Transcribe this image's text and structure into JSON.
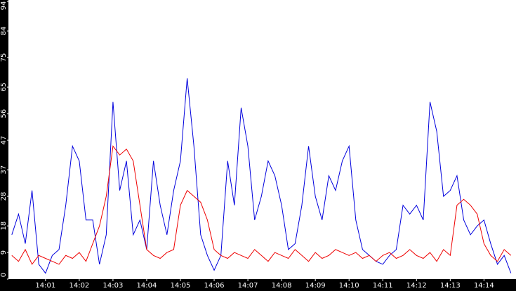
{
  "chart_data": {
    "type": "line",
    "x": [
      0,
      0.2,
      0.4,
      0.6,
      0.8,
      1,
      1.2,
      1.4,
      1.6,
      1.8,
      2,
      2.2,
      2.4,
      2.6,
      2.8,
      3,
      3.2,
      3.4,
      3.6,
      3.8,
      4,
      4.2,
      4.4,
      4.6,
      4.8,
      5,
      5.2,
      5.4,
      5.6,
      5.8,
      6,
      6.2,
      6.4,
      6.6,
      6.8,
      7,
      7.2,
      7.4,
      7.6,
      7.8,
      8,
      8.2,
      8.4,
      8.6,
      8.8,
      9,
      9.2,
      9.4,
      9.6,
      9.8,
      10,
      10.2,
      10.4,
      10.6,
      10.8,
      11,
      11.2,
      11.4,
      11.6,
      11.8,
      12,
      12.2,
      12.4,
      12.6,
      12.8,
      13,
      13.2,
      13.4,
      13.6,
      13.8,
      14,
      14.2,
      14.4,
      14.6,
      14.8
    ],
    "series": [
      {
        "color": "#0000dd",
        "values": [
          15,
          22,
          12,
          30,
          5,
          2,
          8,
          10,
          25,
          45,
          40,
          20,
          20,
          5,
          15,
          60,
          30,
          40,
          15,
          20,
          10,
          40,
          25,
          15,
          30,
          40,
          68,
          45,
          15,
          8,
          3,
          8,
          40,
          25,
          58,
          45,
          20,
          28,
          40,
          35,
          25,
          10,
          12,
          25,
          45,
          28,
          20,
          35,
          30,
          40,
          45,
          20,
          10,
          8,
          6,
          5,
          8,
          10,
          25,
          22,
          25,
          20,
          60,
          50,
          28,
          30,
          35,
          20,
          15,
          18,
          20,
          12,
          5,
          8,
          2
        ]
      },
      {
        "color": "#ee0000",
        "values": [
          8,
          6,
          10,
          5,
          8,
          7,
          6,
          5,
          8,
          7,
          9,
          6,
          12,
          18,
          28,
          45,
          42,
          44,
          40,
          25,
          10,
          8,
          7,
          9,
          10,
          25,
          30,
          28,
          26,
          20,
          10,
          8,
          7,
          9,
          8,
          7,
          10,
          8,
          6,
          9,
          8,
          7,
          10,
          8,
          6,
          9,
          7,
          8,
          10,
          9,
          8,
          9,
          7,
          8,
          6,
          8,
          9,
          7,
          8,
          10,
          8,
          7,
          9,
          6,
          10,
          8,
          25,
          27,
          25,
          22,
          12,
          8,
          6,
          10,
          8
        ]
      }
    ],
    "xlim": [
      -0.1,
      14.95
    ],
    "xticks": [
      {
        "value": 1,
        "label": "14:01"
      },
      {
        "value": 2,
        "label": "14:02"
      },
      {
        "value": 3,
        "label": "14:03"
      },
      {
        "value": 4,
        "label": "14:04"
      },
      {
        "value": 5,
        "label": "14:05"
      },
      {
        "value": 6,
        "label": "14:06"
      },
      {
        "value": 7,
        "label": "14:07"
      },
      {
        "value": 8,
        "label": "14:08"
      },
      {
        "value": 9,
        "label": "14:09"
      },
      {
        "value": 10,
        "label": "14:10"
      },
      {
        "value": 11,
        "label": "14:11"
      },
      {
        "value": 12,
        "label": "14:12"
      },
      {
        "value": 13,
        "label": "14:13"
      },
      {
        "value": 14,
        "label": "14:14"
      }
    ],
    "ylim": [
      0,
      94
    ],
    "yticks": [
      0,
      9,
      18,
      28,
      37,
      47,
      56,
      65,
      75,
      84,
      94
    ]
  }
}
